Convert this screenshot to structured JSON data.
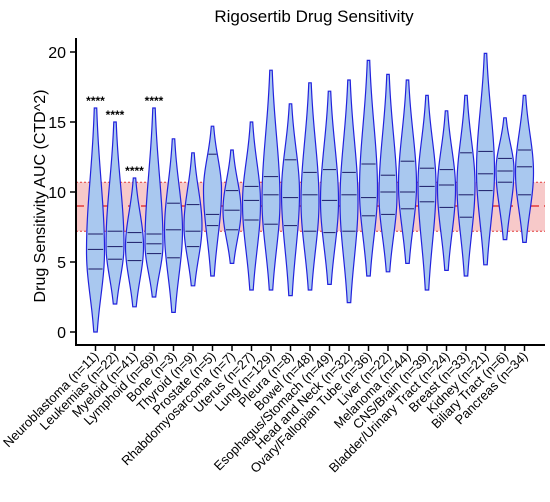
{
  "chart_data": {
    "type": "violin",
    "title": "Rigosertib Drug Sensitivity",
    "ylabel": "Drug Sensitivity AUC (CTD^2)",
    "xlabel": "",
    "ylim": [
      0,
      20
    ],
    "yticks": [
      0,
      5,
      10,
      15,
      20
    ],
    "reference_band": {
      "center": 9.0,
      "lower": 7.2,
      "upper": 10.7,
      "color": "#f7c9c9",
      "line_color": "#e23a3a"
    },
    "violin_fill": "#a9c8ef",
    "violin_stroke": "#2222dd",
    "categories": [
      {
        "label": "Neuroblastoma (n=11)",
        "min": 0.0,
        "q1": 4.5,
        "median": 5.9,
        "q3": 7.0,
        "max": 16.0,
        "annotation": "****"
      },
      {
        "label": "Leukemias (n=22)",
        "min": 2.0,
        "q1": 5.2,
        "median": 6.1,
        "q3": 7.2,
        "max": 15.0,
        "annotation": "****"
      },
      {
        "label": "Myeloid (n=41)",
        "min": 1.8,
        "q1": 5.1,
        "median": 6.4,
        "q3": 7.1,
        "max": 11.0,
        "annotation": "****"
      },
      {
        "label": "Lymphoid (n=69)",
        "min": 2.5,
        "q1": 5.6,
        "median": 6.3,
        "q3": 7.0,
        "max": 16.0,
        "annotation": "****"
      },
      {
        "label": "Bone (n=3)",
        "min": 1.4,
        "q1": 5.3,
        "median": 7.3,
        "q3": 9.2,
        "max": 13.8,
        "annotation": ""
      },
      {
        "label": "Thyroid (n=9)",
        "min": 3.3,
        "q1": 6.1,
        "median": 7.2,
        "q3": 9.1,
        "max": 12.8,
        "annotation": ""
      },
      {
        "label": "Prostate (n=5)",
        "min": 4.0,
        "q1": 7.6,
        "median": 8.4,
        "q3": 12.7,
        "max": 14.7,
        "annotation": ""
      },
      {
        "label": "Rhabdomyosarcoma (n=7)",
        "min": 4.9,
        "q1": 7.3,
        "median": 8.7,
        "q3": 10.1,
        "max": 13.0,
        "annotation": ""
      },
      {
        "label": "Uterus (n=27)",
        "min": 3.0,
        "q1": 8.0,
        "median": 9.4,
        "q3": 10.4,
        "max": 15.0,
        "annotation": ""
      },
      {
        "label": "Lung (n=129)",
        "min": 3.0,
        "q1": 7.7,
        "median": 9.8,
        "q3": 11.1,
        "max": 18.7,
        "annotation": ""
      },
      {
        "label": "Pleura (n=8)",
        "min": 2.6,
        "q1": 7.6,
        "median": 9.6,
        "q3": 12.3,
        "max": 16.3,
        "annotation": ""
      },
      {
        "label": "Bowel (n=48)",
        "min": 3.0,
        "q1": 7.2,
        "median": 9.8,
        "q3": 11.4,
        "max": 17.8,
        "annotation": ""
      },
      {
        "label": "Esophagus/Stomach (n=49)",
        "min": 3.4,
        "q1": 7.1,
        "median": 9.4,
        "q3": 11.6,
        "max": 17.2,
        "annotation": ""
      },
      {
        "label": "Head and Neck (n=32)",
        "min": 2.1,
        "q1": 7.2,
        "median": 9.8,
        "q3": 11.4,
        "max": 18.0,
        "annotation": ""
      },
      {
        "label": "Ovary/Fallopian Tube (n=36)",
        "min": 4.0,
        "q1": 8.3,
        "median": 9.6,
        "q3": 12.0,
        "max": 19.4,
        "annotation": ""
      },
      {
        "label": "Liver (n=22)",
        "min": 4.3,
        "q1": 8.4,
        "median": 10.0,
        "q3": 11.2,
        "max": 18.4,
        "annotation": ""
      },
      {
        "label": "Melanoma (n=44)",
        "min": 4.9,
        "q1": 8.8,
        "median": 10.0,
        "q3": 12.2,
        "max": 18.0,
        "annotation": ""
      },
      {
        "label": "CNS/Brain (n=39)",
        "min": 3.0,
        "q1": 9.3,
        "median": 10.4,
        "q3": 11.7,
        "max": 16.9,
        "annotation": ""
      },
      {
        "label": "Bladder/Urinary Tract (n=24)",
        "min": 4.4,
        "q1": 8.9,
        "median": 10.5,
        "q3": 11.6,
        "max": 15.8,
        "annotation": ""
      },
      {
        "label": "Breast (n=33)",
        "min": 4.0,
        "q1": 8.2,
        "median": 9.8,
        "q3": 12.8,
        "max": 16.9,
        "annotation": ""
      },
      {
        "label": "Kidney (n=21)",
        "min": 4.8,
        "q1": 10.1,
        "median": 11.3,
        "q3": 12.9,
        "max": 19.9,
        "annotation": ""
      },
      {
        "label": "Biliary Tract (n=6)",
        "min": 6.6,
        "q1": 10.7,
        "median": 11.5,
        "q3": 12.4,
        "max": 15.3,
        "annotation": ""
      },
      {
        "label": "Pancreas (n=34)",
        "min": 6.4,
        "q1": 9.8,
        "median": 11.8,
        "q3": 13.0,
        "max": 16.9,
        "annotation": ""
      }
    ]
  }
}
